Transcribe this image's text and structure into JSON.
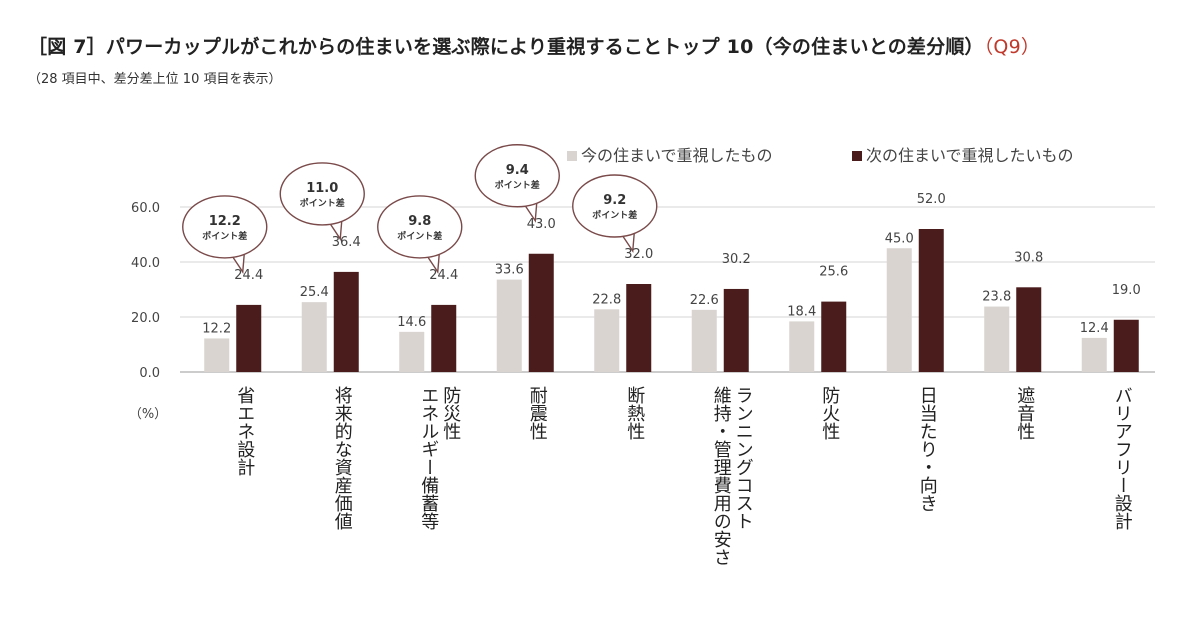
{
  "header": {
    "title_prefix": "［図 7］パワーカップルがこれからの住まいを選ぶ際により重視することトップ 10（今の住まいとの差分順）",
    "title_q": "（Q9）",
    "subtitle": "（28 項目中、差分差上位 10 項目を表示）"
  },
  "chart_data": {
    "type": "bar",
    "categories": [
      "省エネ設計",
      "将来的な資産価値",
      "防災性エネルギー備蓄等",
      "耐震性",
      "断熱性",
      "ランニングコスト維持・管理費用の安さ",
      "防火性",
      "日当たり・向き",
      "遮音性",
      "バリアフリー設計"
    ],
    "category_lines": [
      [
        "省エネ設計"
      ],
      [
        "将来的な資産価値"
      ],
      [
        "防災性",
        "エネルギー備蓄等"
      ],
      [
        "耐震性"
      ],
      [
        "断熱性"
      ],
      [
        "ランニングコスト",
        "維持・管理費用の安さ"
      ],
      [
        "防火性"
      ],
      [
        "日当たり・向き"
      ],
      [
        "遮音性"
      ],
      [
        "バリアフリー設計"
      ]
    ],
    "series": [
      {
        "name": "今の住まいで重視したもの",
        "color": "#d9d4d0",
        "values": [
          12.2,
          25.4,
          14.6,
          33.6,
          22.8,
          22.6,
          18.4,
          45.0,
          23.8,
          12.4
        ]
      },
      {
        "name": "次の住まいで重視したいもの",
        "color": "#4a1c1c",
        "values": [
          24.4,
          36.4,
          24.4,
          43.0,
          32.0,
          30.2,
          25.6,
          52.0,
          30.8,
          19.0
        ]
      }
    ],
    "y_ticks": [
      "0.0",
      "20.0",
      "40.0",
      "60.0"
    ],
    "ylim": [
      0,
      60
    ],
    "unit_label": "（%）",
    "callouts": [
      {
        "index": 0,
        "value": "12.2",
        "text": "ポイント差"
      },
      {
        "index": 1,
        "value": "11.0",
        "text": "ポイント差"
      },
      {
        "index": 2,
        "value": "9.8",
        "text": "ポイント差"
      },
      {
        "index": 3,
        "value": "9.4",
        "text": "ポイント差"
      },
      {
        "index": 4,
        "value": "9.2",
        "text": "ポイント差"
      }
    ],
    "grid": true,
    "legend_position": "top-right"
  }
}
